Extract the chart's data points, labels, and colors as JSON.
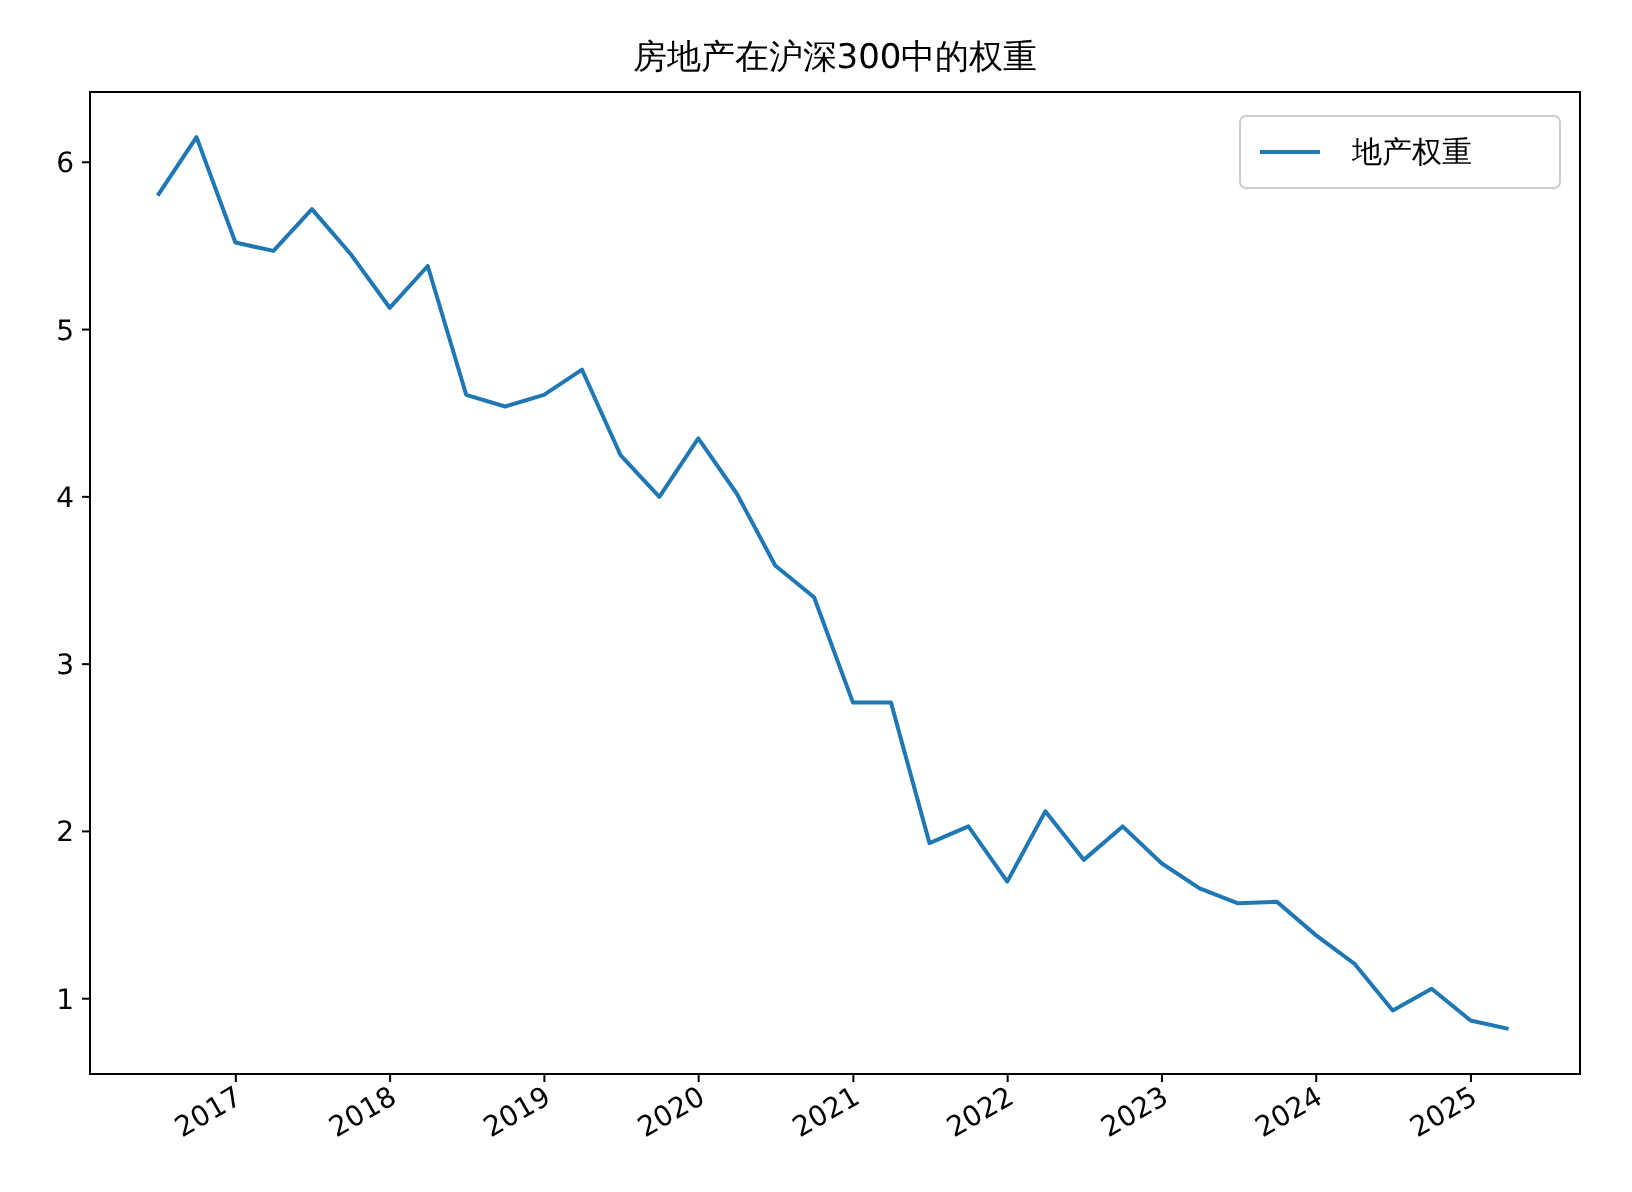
{
  "chart_data": {
    "type": "line",
    "title": "房地产在沪深300中的权重",
    "x": [
      "2016-06-30",
      "2016-09-30",
      "2016-12-31",
      "2017-03-31",
      "2017-06-30",
      "2017-09-30",
      "2017-12-31",
      "2018-03-31",
      "2018-06-30",
      "2018-09-30",
      "2018-12-31",
      "2019-03-31",
      "2019-06-30",
      "2019-09-30",
      "2019-12-31",
      "2020-03-31",
      "2020-06-30",
      "2020-09-30",
      "2020-12-31",
      "2021-03-31",
      "2021-06-30",
      "2021-09-30",
      "2021-12-31",
      "2022-03-31",
      "2022-06-30",
      "2022-09-30",
      "2022-12-31",
      "2023-03-31",
      "2023-06-30",
      "2023-09-30",
      "2023-12-31",
      "2024-03-31",
      "2024-06-30",
      "2024-09-30",
      "2024-12-31",
      "2025-03-31"
    ],
    "series": [
      {
        "name": "地产权重",
        "color": "#1f77b4",
        "values": [
          5.8,
          6.15,
          5.52,
          5.47,
          5.72,
          5.45,
          5.13,
          5.38,
          4.61,
          4.54,
          4.61,
          4.76,
          4.25,
          4.0,
          4.35,
          4.02,
          3.59,
          3.4,
          2.77,
          2.77,
          1.93,
          2.03,
          1.7,
          2.12,
          1.83,
          2.03,
          1.81,
          1.66,
          1.57,
          1.58,
          1.38,
          1.21,
          0.93,
          1.06,
          0.87,
          0.82
        ]
      }
    ],
    "xlim": [
      "2016-01-22",
      "2025-09-16"
    ],
    "xticks": [
      {
        "value": "2017-01-01",
        "label": "2017"
      },
      {
        "value": "2018-01-01",
        "label": "2018"
      },
      {
        "value": "2019-01-01",
        "label": "2019"
      },
      {
        "value": "2020-01-01",
        "label": "2020"
      },
      {
        "value": "2021-01-01",
        "label": "2021"
      },
      {
        "value": "2022-01-01",
        "label": "2022"
      },
      {
        "value": "2023-01-01",
        "label": "2023"
      },
      {
        "value": "2024-01-01",
        "label": "2024"
      },
      {
        "value": "2025-01-01",
        "label": "2025"
      }
    ],
    "ylim": [
      0.55,
      6.42
    ],
    "yticks": [
      1,
      2,
      3,
      4,
      5,
      6
    ],
    "legend": "top right",
    "grid": false,
    "marker": "none",
    "line_style": "solid"
  }
}
